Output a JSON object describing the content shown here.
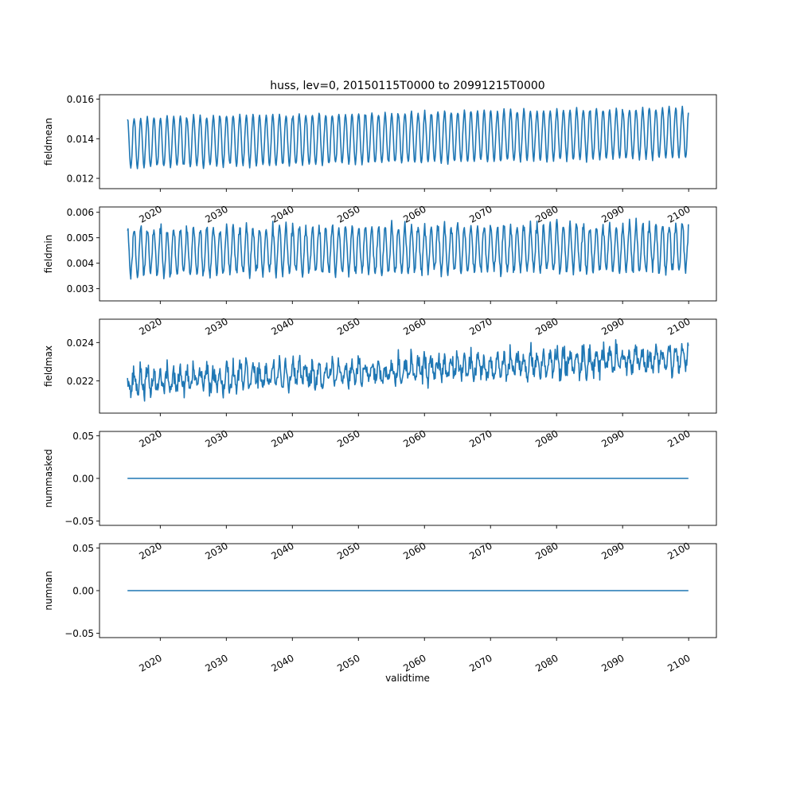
{
  "title": "huss, lev=0, 20150115T0000 to 20991215T0000",
  "xlabel": "validtime",
  "colors": {
    "line": "#1f77b4",
    "axes": "#000000",
    "background": "#ffffff"
  },
  "chart_data": [
    {
      "type": "line",
      "ylabel": "fieldmean",
      "x_range": [
        2015.04,
        2099.96
      ],
      "xlim": [
        2010.8,
        2104.2
      ],
      "ylim": [
        0.01148,
        0.01622
      ],
      "xticks": [
        2020,
        2030,
        2040,
        2050,
        2060,
        2070,
        2080,
        2090,
        2100
      ],
      "yticks": [
        0.012,
        0.014,
        0.016
      ],
      "ytick_labels": [
        "0.012",
        "0.014",
        "0.016"
      ],
      "grid": false,
      "series": [
        {
          "mean": 0.0138,
          "amplitude": 0.00125,
          "trend_per_year": 6e-06,
          "noise": 0.00012,
          "seed": 11,
          "period_years": 1.0
        }
      ]
    },
    {
      "type": "line",
      "ylabel": "fieldmin",
      "x_range": [
        2015.04,
        2099.96
      ],
      "xlim": [
        2010.8,
        2104.2
      ],
      "ylim": [
        0.00252,
        0.00621
      ],
      "xticks": [
        2020,
        2030,
        2040,
        2050,
        2060,
        2070,
        2080,
        2090,
        2100
      ],
      "yticks": [
        0.003,
        0.004,
        0.005,
        0.006
      ],
      "ytick_labels": [
        "0.003",
        "0.004",
        "0.005",
        "0.006"
      ],
      "grid": false,
      "series": [
        {
          "mean": 0.00445,
          "amplitude": 0.0009,
          "trend_per_year": 2e-06,
          "noise": 0.00022,
          "seed": 23,
          "period_years": 1.0
        }
      ]
    },
    {
      "type": "line",
      "ylabel": "fieldmax",
      "x_range": [
        2015.04,
        2099.96
      ],
      "xlim": [
        2010.8,
        2104.2
      ],
      "ylim": [
        0.02031,
        0.02522
      ],
      "xticks": [
        2020,
        2030,
        2040,
        2050,
        2060,
        2070,
        2080,
        2090,
        2100
      ],
      "yticks": [
        0.022,
        0.024
      ],
      "ytick_labels": [
        "0.022",
        "0.024"
      ],
      "grid": false,
      "series": [
        {
          "mean": 0.0219,
          "amplitude": 0.0005,
          "trend_per_year": 1.6e-05,
          "noise": 0.00055,
          "seed": 37,
          "period_years": 1.0
        }
      ]
    },
    {
      "type": "line",
      "ylabel": "nummasked",
      "x_range": [
        2015.04,
        2099.96
      ],
      "xlim": [
        2010.8,
        2104.2
      ],
      "ylim": [
        -0.055,
        0.055
      ],
      "xticks": [
        2020,
        2030,
        2040,
        2050,
        2060,
        2070,
        2080,
        2090,
        2100
      ],
      "yticks": [
        -0.05,
        0.0,
        0.05
      ],
      "ytick_labels": [
        "−0.05",
        "0.00",
        "0.05"
      ],
      "grid": false,
      "series": [
        {
          "constant": 0.0
        }
      ]
    },
    {
      "type": "line",
      "ylabel": "numnan",
      "x_range": [
        2015.04,
        2099.96
      ],
      "xlim": [
        2010.8,
        2104.2
      ],
      "ylim": [
        -0.055,
        0.055
      ],
      "xticks": [
        2020,
        2030,
        2040,
        2050,
        2060,
        2070,
        2080,
        2090,
        2100
      ],
      "yticks": [
        -0.05,
        0.0,
        0.05
      ],
      "ytick_labels": [
        "−0.05",
        "0.00",
        "0.05"
      ],
      "grid": false,
      "series": [
        {
          "constant": 0.0
        }
      ]
    }
  ]
}
